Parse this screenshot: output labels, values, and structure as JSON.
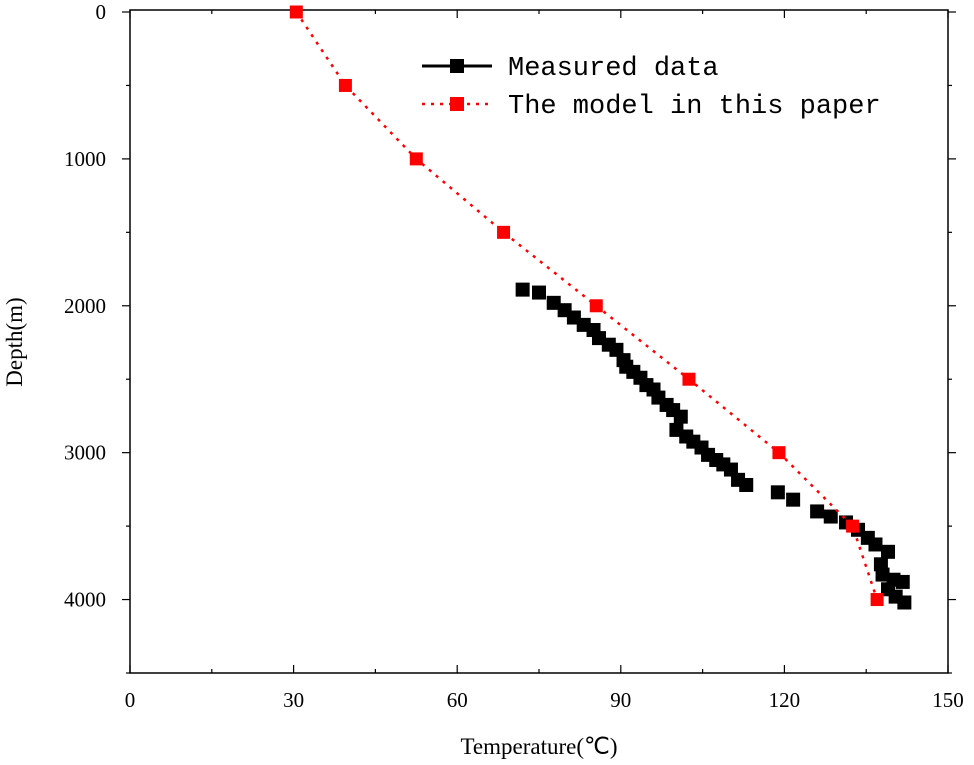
{
  "chart_data": {
    "type": "scatter",
    "title": "",
    "xlabel": "Temperature(℃)",
    "ylabel": "Depth(m)",
    "xlim": [
      0,
      150
    ],
    "ylim": [
      0,
      4500
    ],
    "y_inverted": true,
    "x_ticks": [
      "0",
      "30",
      "60",
      "90",
      "120",
      "150"
    ],
    "y_ticks": [
      "0",
      "1000",
      "2000",
      "3000",
      "4000"
    ],
    "grid": false,
    "legend_position": "top-right",
    "series": [
      {
        "name": "Measured data",
        "color": "#000000",
        "marker": "square",
        "line": "solid",
        "x": [
          72,
          75,
          77.7,
          79.7,
          81.4,
          83.2,
          85,
          86,
          87.8,
          89.2,
          90.5,
          91,
          92.3,
          93.6,
          94.7,
          96,
          96.9,
          98.4,
          99.6,
          101,
          100.2,
          102,
          103.3,
          104.8,
          106,
          107.5,
          108.8,
          110.2,
          111.5,
          113,
          118.8,
          121.6,
          126,
          128.5,
          131.3,
          133.5,
          135.3,
          136.7,
          139,
          137.7,
          138,
          140,
          141.7,
          139,
          140.4,
          142
        ],
        "y": [
          1890,
          1910,
          1980,
          2030,
          2080,
          2130,
          2165,
          2220,
          2265,
          2300,
          2370,
          2415,
          2450,
          2490,
          2540,
          2570,
          2625,
          2675,
          2710,
          2755,
          2845,
          2890,
          2925,
          2965,
          3015,
          3050,
          3080,
          3115,
          3185,
          3220,
          3270,
          3320,
          3400,
          3435,
          3475,
          3525,
          3580,
          3625,
          3675,
          3760,
          3830,
          3865,
          3880,
          3930,
          3980,
          4020
        ]
      },
      {
        "name": "The model in this paper",
        "color": "#ff0000",
        "marker": "square",
        "line": "dotted",
        "x": [
          30.5,
          39.5,
          52.5,
          68.5,
          85.5,
          102.5,
          119,
          132.5,
          137
        ],
        "y": [
          0,
          500,
          1000,
          1500,
          2000,
          2500,
          3000,
          3500,
          4000
        ]
      }
    ]
  }
}
